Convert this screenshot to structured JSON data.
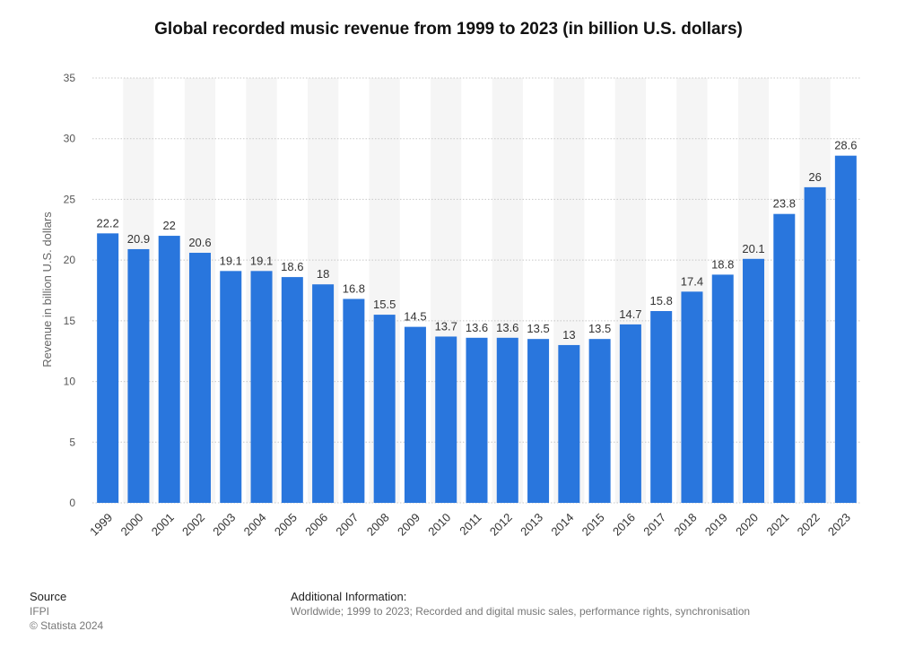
{
  "chart_data": {
    "type": "bar",
    "title": "Global recorded music revenue from 1999 to 2023 (in billion U.S. dollars)",
    "xlabel": "",
    "ylabel": "Revenue in billion U.S. dollars",
    "ylim": [
      0,
      35
    ],
    "yticks": [
      0,
      5,
      10,
      15,
      20,
      25,
      30,
      35
    ],
    "grid": true,
    "bar_color": "#2976dd",
    "categories": [
      "1999",
      "2000",
      "2001",
      "2002",
      "2003",
      "2004",
      "2005",
      "2006",
      "2007",
      "2008",
      "2009",
      "2010",
      "2011",
      "2012",
      "2013",
      "2014",
      "2015",
      "2016",
      "2017",
      "2018",
      "2019",
      "2020",
      "2021",
      "2022",
      "2023"
    ],
    "values": [
      22.2,
      20.9,
      22,
      20.6,
      19.1,
      19.1,
      18.6,
      18,
      16.8,
      15.5,
      14.5,
      13.7,
      13.6,
      13.6,
      13.5,
      13,
      13.5,
      14.7,
      15.8,
      17.4,
      18.8,
      20.1,
      23.8,
      26,
      28.6
    ]
  },
  "footer": {
    "source_heading": "Source",
    "source_name": "IFPI",
    "copyright": "© Statista 2024",
    "info_heading": "Additional Information:",
    "info_text": "Worldwide; 1999 to 2023; Recorded and digital music sales, performance rights, synchronisation"
  }
}
